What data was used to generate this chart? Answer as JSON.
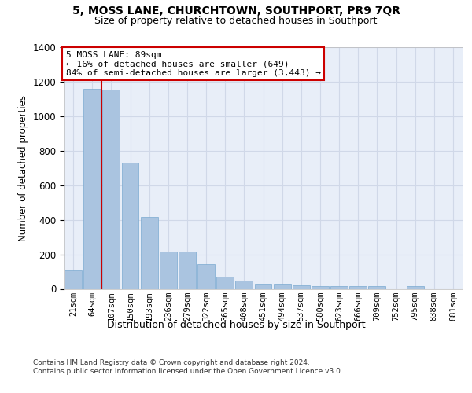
{
  "title": "5, MOSS LANE, CHURCHTOWN, SOUTHPORT, PR9 7QR",
  "subtitle": "Size of property relative to detached houses in Southport",
  "xlabel": "Distribution of detached houses by size in Southport",
  "ylabel": "Number of detached properties",
  "bar_labels": [
    "21sqm",
    "64sqm",
    "107sqm",
    "150sqm",
    "193sqm",
    "236sqm",
    "279sqm",
    "322sqm",
    "365sqm",
    "408sqm",
    "451sqm",
    "494sqm",
    "537sqm",
    "580sqm",
    "623sqm",
    "666sqm",
    "709sqm",
    "752sqm",
    "795sqm",
    "838sqm",
    "881sqm"
  ],
  "bar_values": [
    105,
    1160,
    1155,
    730,
    415,
    215,
    215,
    145,
    70,
    48,
    30,
    30,
    20,
    15,
    15,
    15,
    15,
    0,
    15,
    0,
    0
  ],
  "bar_color": "#aac4e0",
  "bar_edge_color": "#7aaad0",
  "vline_x": 1.5,
  "vline_color": "#cc0000",
  "annotation_text": "5 MOSS LANE: 89sqm\n← 16% of detached houses are smaller (649)\n84% of semi-detached houses are larger (3,443) →",
  "annotation_box_color": "#ffffff",
  "annotation_box_edge": "#cc0000",
  "ylim": [
    0,
    1400
  ],
  "yticks": [
    0,
    200,
    400,
    600,
    800,
    1000,
    1200,
    1400
  ],
  "grid_color": "#d0d8e8",
  "bg_color": "#e8eef8",
  "footer": "Contains HM Land Registry data © Crown copyright and database right 2024.\nContains public sector information licensed under the Open Government Licence v3.0."
}
